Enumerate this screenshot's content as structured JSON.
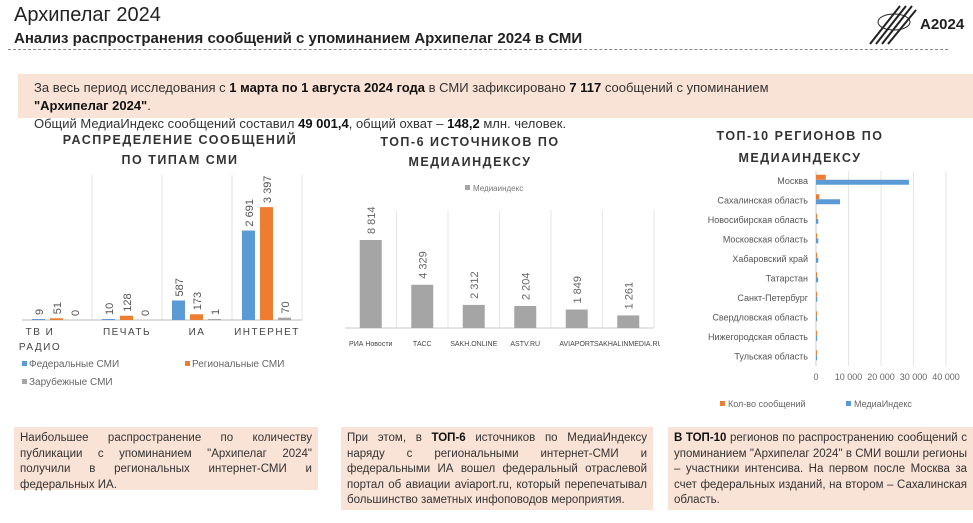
{
  "header": {
    "title": "Архипелаг 2024",
    "subtitle": "Анализ распространения сообщений с упоминанием Архипелаг 2024 в СМИ",
    "logo_text": "A2024"
  },
  "intro": {
    "p1_a": "За весь период исследования с ",
    "p1_b": "1 марта по 1 августа 2024 года",
    "p1_c": " в СМИ зафиксировано ",
    "p1_d": "7 117",
    "p1_e": " сообщений с упоминанием",
    "p1_f": "\"Архипелаг 2024\"",
    "p1_g": ".",
    "p2_a": "Общий МедиаИндекс сообщений составил ",
    "p2_b": "49 001,4",
    "p2_c": ", общий охват – ",
    "p2_d": "148,2",
    "p2_e": " млн. человек."
  },
  "colors": {
    "federal": "#5b9bd5",
    "regional": "#ed7d31",
    "foreign": "#a5a5a5",
    "gray_bar": "#a5a5a5"
  },
  "chart_data": [
    {
      "type": "bar",
      "title": "РАСПРЕДЕЛЕНИЕ СООБЩЕНИЙ ПО ТИПАМ СМИ",
      "title_lines": [
        "РАСПРЕДЕЛЕНИЕ СООБЩЕНИЙ",
        "ПО ТИПАМ СМИ"
      ],
      "categories": [
        [
          "ТВ И",
          "РАДИО"
        ],
        [
          "ПЕЧАТЬ"
        ],
        [
          "ИА"
        ],
        [
          "ИНТЕРНЕТ"
        ]
      ],
      "series": [
        {
          "name": "Федеральные СМИ",
          "values": [
            9,
            10,
            587,
            2691
          ],
          "labels": [
            "9",
            "10",
            "587",
            "2 691"
          ]
        },
        {
          "name": "Региональные СМИ",
          "values": [
            51,
            128,
            173,
            3397
          ],
          "labels": [
            "51",
            "128",
            "173",
            "3 397"
          ]
        },
        {
          "name": "Зарубежные СМИ",
          "values": [
            0,
            0,
            1,
            70
          ],
          "labels": [
            "0",
            "0",
            "1",
            "70"
          ]
        }
      ],
      "ylim": [
        0,
        3400
      ],
      "legend": "bottom"
    },
    {
      "type": "bar",
      "title": "ТОП-6 ИСТОЧНИКОВ ПО МЕДИАИНДЕКСУ",
      "title_lines": [
        "ТОП-6 ИСТОЧНИКОВ ПО",
        "МЕДИАИНДЕКСУ"
      ],
      "categories": [
        "РИА Новости",
        "ТАСС",
        "SAKH.ONLINE",
        "ASTV.RU",
        "AVIAPORT",
        "SAKHALINMEDIA.RU"
      ],
      "series": [
        {
          "name": "Медиаиндекс",
          "values": [
            8814,
            4329,
            2312,
            2204,
            1849,
            1261
          ],
          "labels": [
            "8 814",
            "4 329",
            "2 312",
            "2 204",
            "1 849",
            "1 261"
          ]
        }
      ],
      "ylim": [
        0,
        8814
      ],
      "legend": "top"
    },
    {
      "type": "bar",
      "orientation": "horizontal",
      "title": "ТОП-10 РЕГИОНОВ ПО МЕДИАИНДЕКСУ",
      "title_lines": [
        "ТОП-10 РЕГИОНОВ ПО",
        "МЕДИАИНДЕКСУ"
      ],
      "categories": [
        "Москва",
        "Сахалинская область",
        "Новосибирская область",
        "Московская область",
        "Хабаровский край",
        "Татарстан",
        "Санкт-Петербург",
        "Свердловская область",
        "Нижегородская область",
        "Тульская область"
      ],
      "series": [
        {
          "name": "Кол-во сообщений",
          "values": [
            3000,
            1000,
            30,
            30,
            30,
            30,
            20,
            20,
            20,
            20
          ]
        },
        {
          "name": "МедиаИндекс",
          "values": [
            28600,
            7400,
            700,
            700,
            700,
            650,
            400,
            350,
            350,
            350
          ]
        }
      ],
      "xticks": [
        "0",
        "10 000",
        "20 000",
        "30 000",
        "40 000"
      ],
      "xlim": [
        0,
        40000
      ],
      "legend": "bottom"
    }
  ],
  "boxes": [
    {
      "text": "Наибольшее распространение по количеству публикации с упоминанием \"Архипелаг 2024\" получили в региональных интернет-СМИ и федеральных ИА."
    },
    {
      "a": "При этом, в ",
      "b": "ТОП-6",
      "c": " источников по МедиаИндексу наряду с региональными интернет-СМИ и федеральными ИА вошел федеральный отраслевой портал об авиации aviaport.ru, который перепечатывал большинство заметных инфоповодов мероприятия."
    },
    {
      "a": "",
      "b": "В ТОП-10",
      "c": " регионов по распространению сообщений с упоминанием \"Архипелаг 2024\" в СМИ вошли регионы – участники интенсива. На первом после Москва за счет федеральных изданий, на втором – Сахалинская область."
    }
  ]
}
